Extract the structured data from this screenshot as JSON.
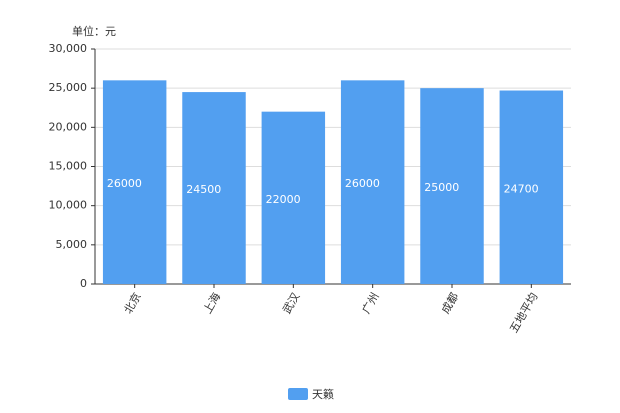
{
  "chart_data": {
    "type": "bar",
    "unit_label": "单位：元",
    "categories": [
      "北京",
      "上海",
      "武汉",
      "广州",
      "成都",
      "五地平均"
    ],
    "series": [
      {
        "name": "天籁",
        "color": "#529ff0",
        "values": [
          26000,
          24500,
          22000,
          26000,
          25000,
          24700
        ]
      }
    ],
    "ylim": [
      0,
      30000
    ],
    "yticks": [
      0,
      {
        "value": 5000,
        "label": "5,000"
      },
      {
        "value": 10000,
        "label": "10,000"
      },
      {
        "value": 15000,
        "label": "15,000"
      },
      {
        "value": 20000,
        "label": "20,000"
      },
      {
        "value": 25000,
        "label": "25,000"
      },
      {
        "value": 30000,
        "label": "30,000"
      }
    ],
    "grid": true,
    "legend": "bottom"
  }
}
